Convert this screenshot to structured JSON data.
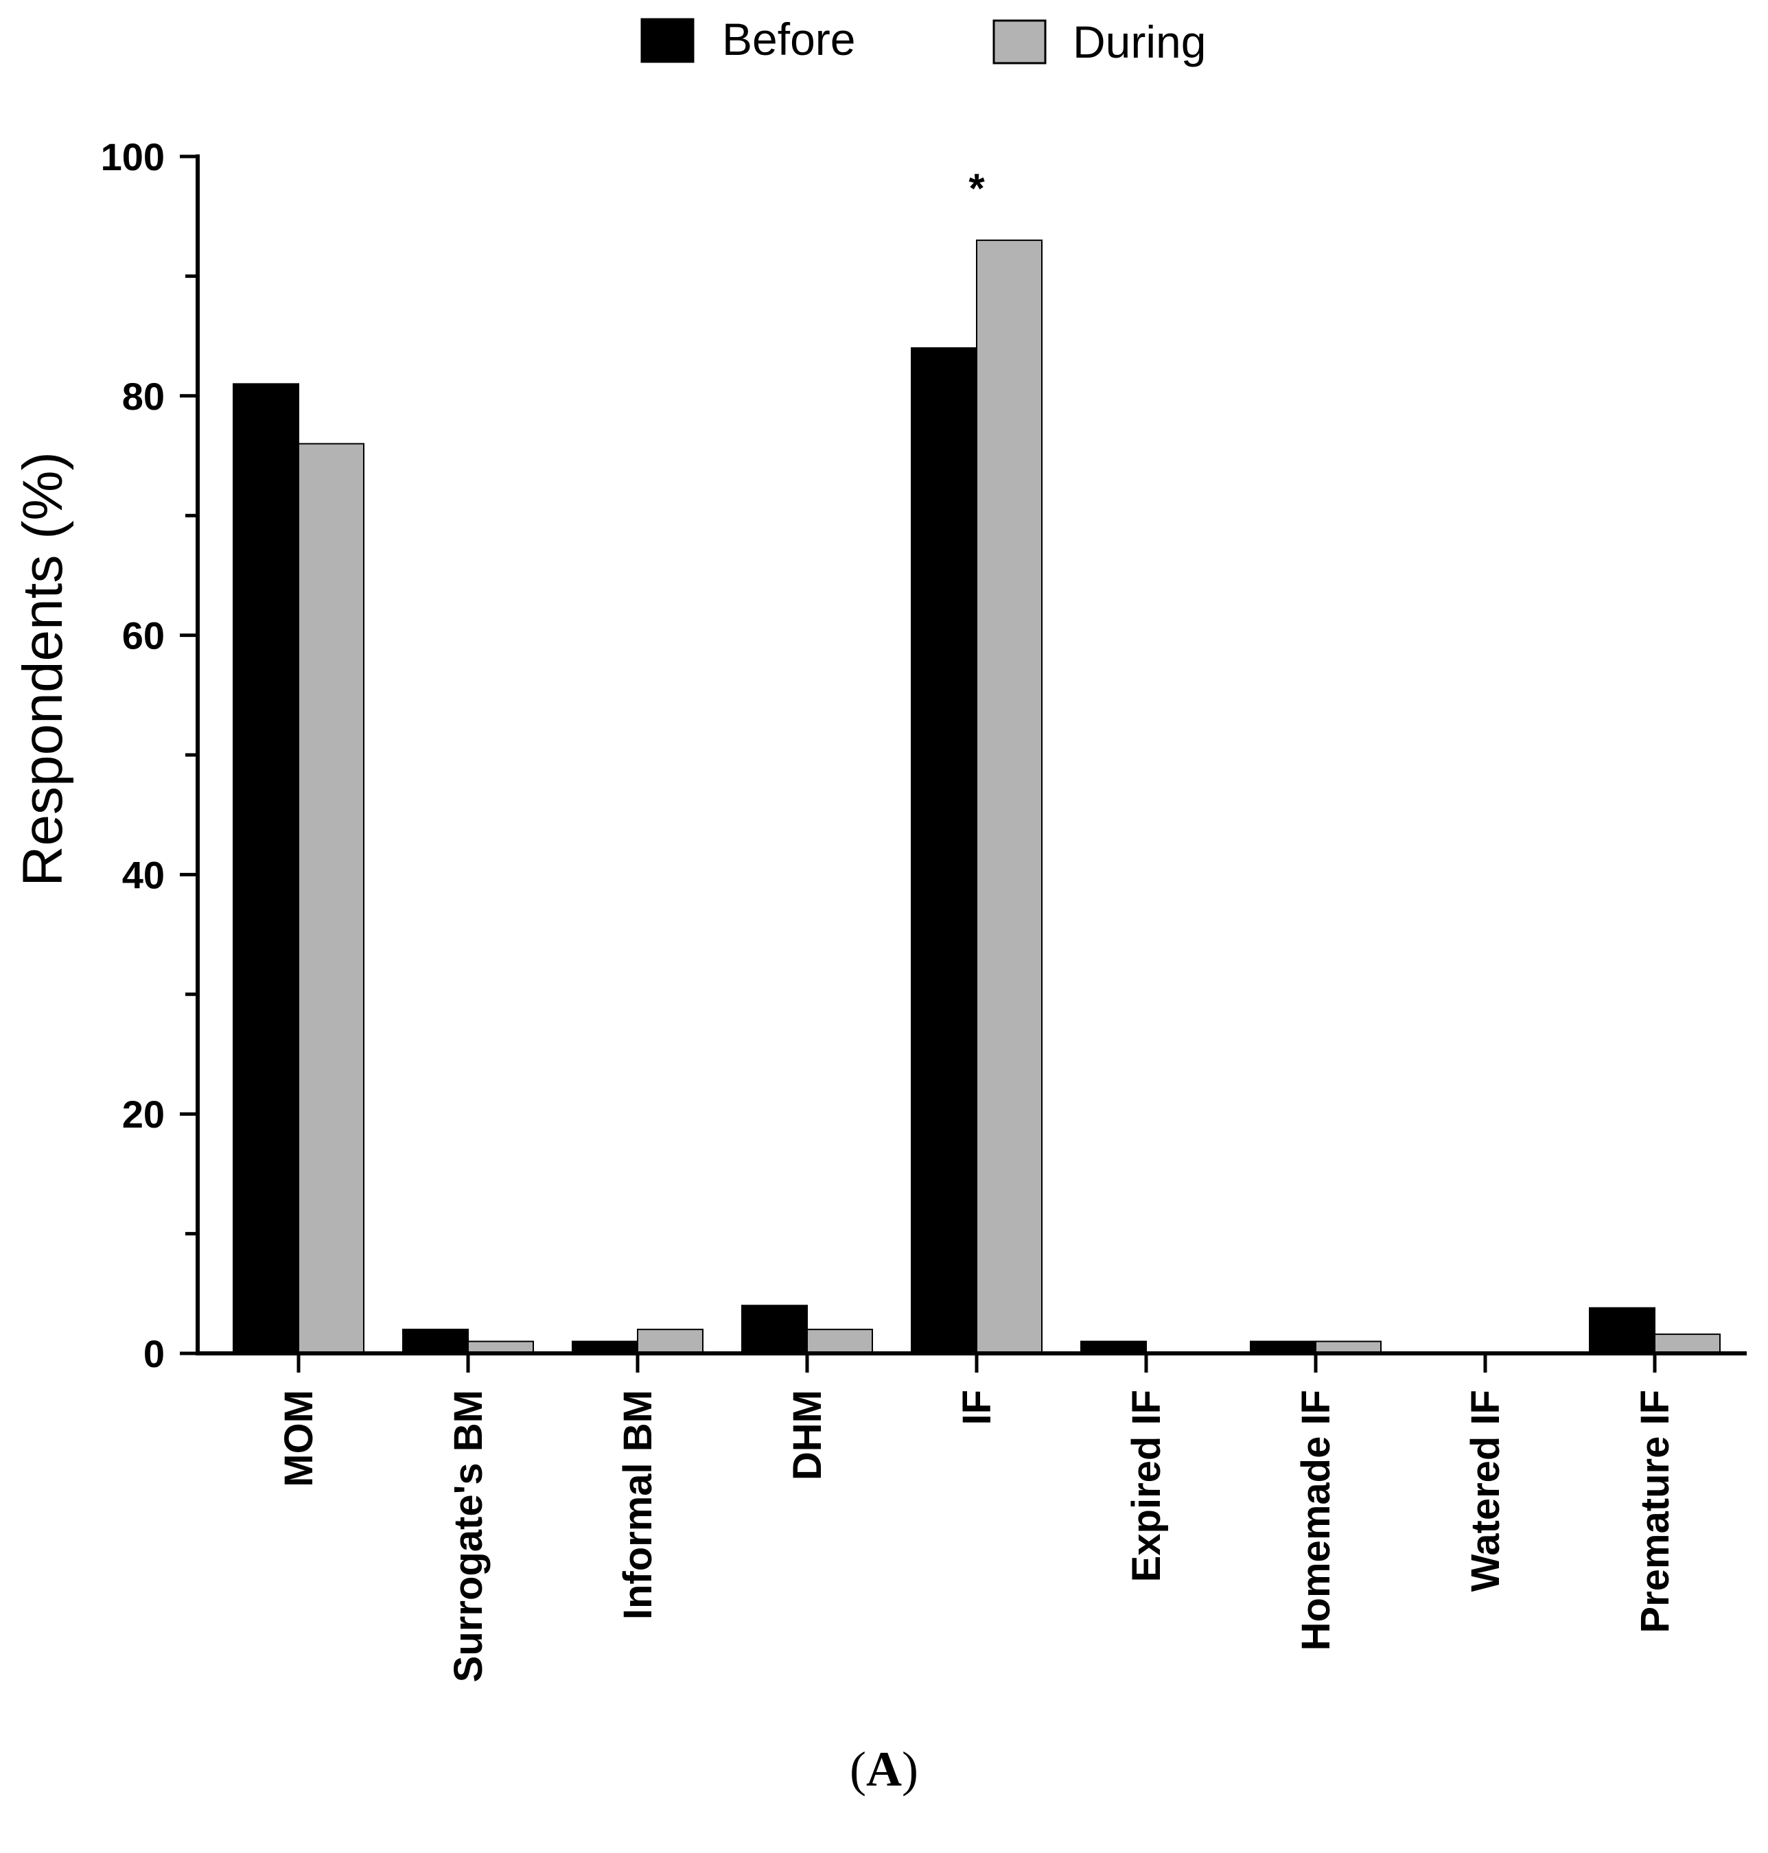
{
  "chart_data": {
    "type": "bar",
    "ylabel": "Respondents (%)",
    "ylim": [
      0,
      100
    ],
    "yticks": [
      "0",
      "20",
      "40",
      "60",
      "80",
      "100"
    ],
    "categories": [
      "MOM",
      "Surrogate's BM",
      "Informal BM",
      "DHM",
      "IF",
      "Expired IF",
      "Homemade IF",
      "Watered IF",
      "Premature IF"
    ],
    "series": [
      {
        "name": "Before",
        "color": "#000000",
        "values": [
          81,
          2,
          1,
          4,
          84,
          1,
          1,
          0,
          3.8
        ]
      },
      {
        "name": "During",
        "color": "#b3b3b3",
        "values": [
          76,
          1,
          2,
          2,
          93,
          0,
          1,
          0,
          1.6
        ]
      }
    ],
    "legend_position": "top-center",
    "annotations": [
      {
        "text": "*",
        "category": "IF"
      }
    ],
    "caption": {
      "open": "(",
      "letter": "A",
      "close": ")"
    }
  }
}
